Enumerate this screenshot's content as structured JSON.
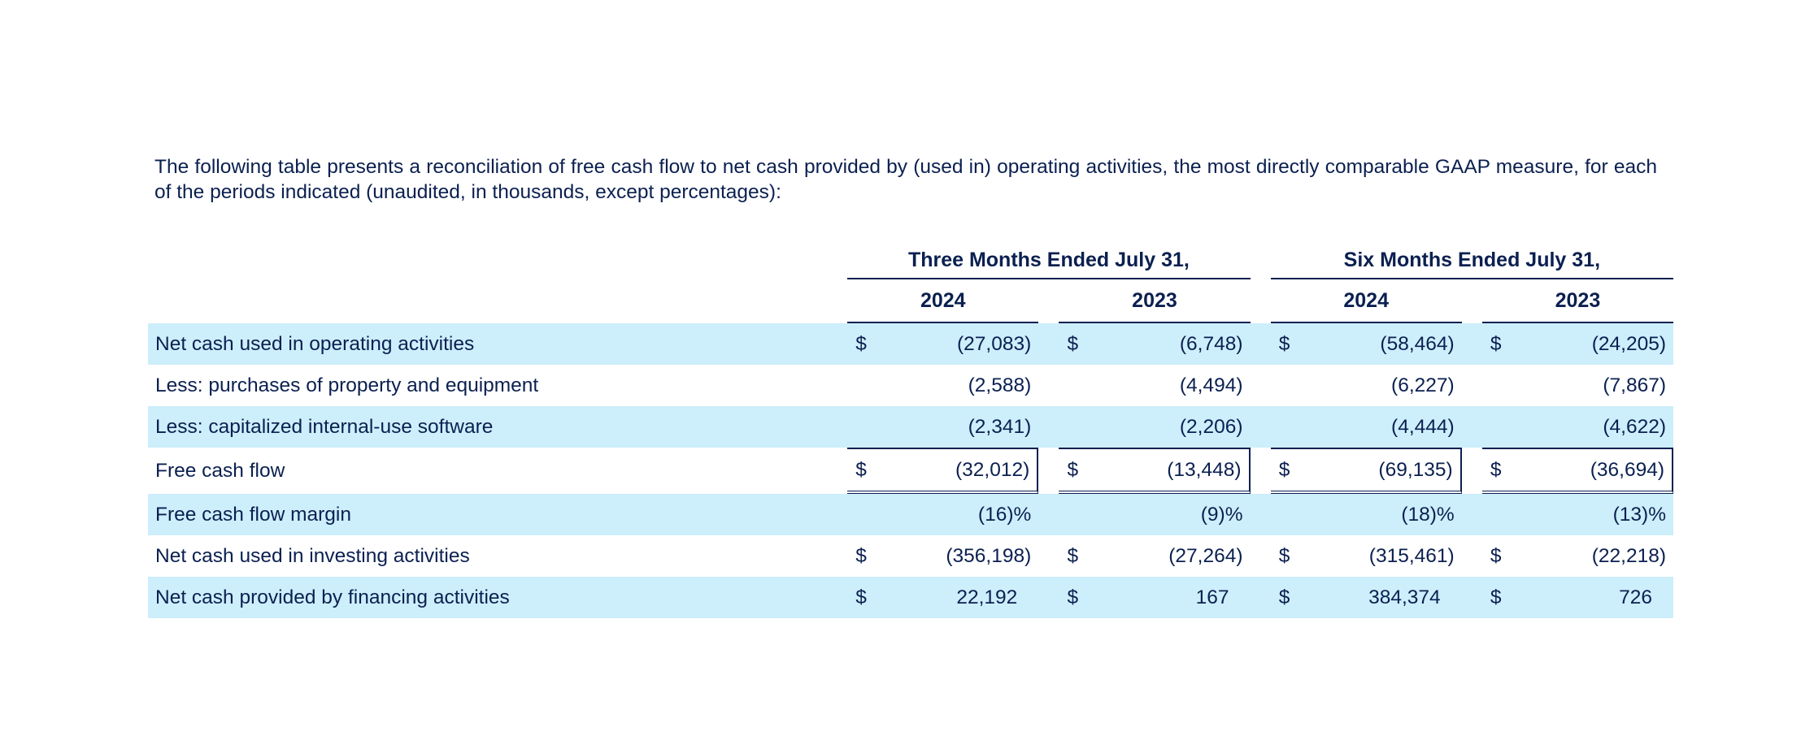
{
  "intro": "The following table presents a reconciliation of free cash flow to net cash provided by (used in) operating activities, the most directly comparable GAAP measure, for each of the periods indicated (unaudited, in thousands, except percentages):",
  "table": {
    "group_headers": [
      "Three Months Ended July 31,",
      "Six Months Ended July 31,"
    ],
    "year_headers": [
      "2024",
      "2023",
      "2024",
      "2023"
    ],
    "rows": [
      {
        "label": "Net cash used in operating activities",
        "dollar": [
          "$",
          "$",
          "$",
          "$"
        ],
        "values": [
          "(27,083)",
          "(6,748)",
          "(58,464)",
          "(24,205)"
        ]
      },
      {
        "label": "Less: purchases of property and equipment",
        "dollar": [
          "",
          "",
          "",
          ""
        ],
        "values": [
          "(2,588)",
          "(4,494)",
          "(6,227)",
          "(7,867)"
        ]
      },
      {
        "label": "Less: capitalized internal-use software",
        "dollar": [
          "",
          "",
          "",
          ""
        ],
        "values": [
          "(2,341)",
          "(2,206)",
          "(4,444)",
          "(4,622)"
        ]
      },
      {
        "label": "Free cash flow",
        "dollar": [
          "$",
          "$",
          "$",
          "$"
        ],
        "values": [
          "(32,012)",
          "(13,448)",
          "(69,135)",
          "(36,694)"
        ]
      },
      {
        "label": "Free cash flow margin",
        "dollar": [
          "",
          "",
          "",
          ""
        ],
        "values": [
          "(16)%",
          "(9)%",
          "(18)%",
          "(13)%"
        ]
      },
      {
        "label": "Net cash used in investing activities",
        "dollar": [
          "$",
          "$",
          "$",
          "$"
        ],
        "values": [
          "(356,198)",
          "(27,264)",
          "(315,461)",
          "(22,218)"
        ]
      },
      {
        "label": "Net cash provided by financing activities",
        "dollar": [
          "$",
          "$",
          "$",
          "$"
        ],
        "values": [
          "22,192",
          "167",
          "384,374",
          "726"
        ]
      }
    ]
  },
  "colors": {
    "text": "#0b2050",
    "row_shade": "#cdeefb"
  }
}
